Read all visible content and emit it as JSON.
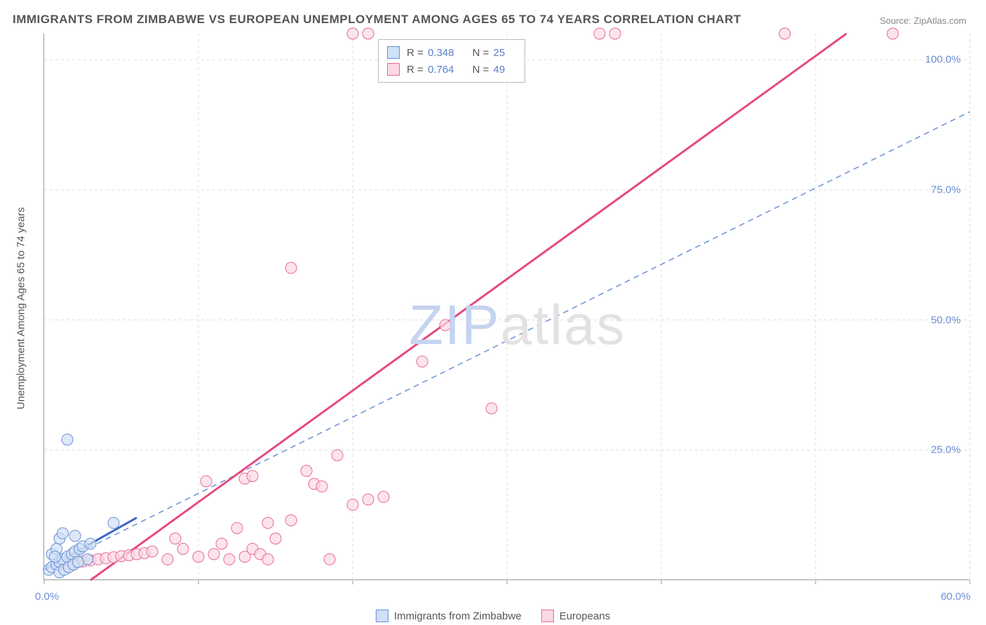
{
  "title": "IMMIGRANTS FROM ZIMBABWE VS EUROPEAN UNEMPLOYMENT AMONG AGES 65 TO 74 YEARS CORRELATION CHART",
  "source": "Source: ZipAtlas.com",
  "ylabel": "Unemployment Among Ages 65 to 74 years",
  "watermark_zip": "ZIP",
  "watermark_atlas": "atlas",
  "chart": {
    "type": "scatter",
    "xlim": [
      0,
      60
    ],
    "ylim": [
      0,
      105
    ],
    "x_ticks": [
      0,
      10,
      20,
      30,
      40,
      50,
      60
    ],
    "x_tick_labels": [
      "0.0%",
      "",
      "",
      "",
      "",
      "",
      "60.0%"
    ],
    "y_ticks": [
      25,
      50,
      75,
      100
    ],
    "y_tick_labels": [
      "25.0%",
      "50.0%",
      "75.0%",
      "100.0%"
    ],
    "grid_color": "#dddddd",
    "axis_color": "#999999",
    "background_color": "#ffffff",
    "tick_label_color": "#6b8fd4",
    "label_color": "#555555",
    "title_fontsize": 17,
    "label_fontsize": 15
  },
  "series_a": {
    "name": "Immigrants from Zimbabwe",
    "fill_color": "#cfe0f7",
    "stroke_color": "#6b8fd4",
    "marker_radius": 8,
    "line_solid_color": "#3a66c4",
    "line_dash_color": "#6b8fd4",
    "R": "0.348",
    "N": "25",
    "trend_solid": {
      "x1": 0,
      "y1": 2,
      "x2": 6,
      "y2": 12
    },
    "trend_dash": {
      "x1": 0,
      "y1": 2,
      "x2": 60,
      "y2": 90
    },
    "points": [
      [
        0.3,
        2.0
      ],
      [
        0.5,
        2.5
      ],
      [
        0.8,
        3.0
      ],
      [
        1.0,
        3.5
      ],
      [
        1.2,
        4.0
      ],
      [
        1.5,
        4.5
      ],
      [
        1.8,
        5.0
      ],
      [
        2.0,
        5.5
      ],
      [
        2.3,
        6.0
      ],
      [
        2.5,
        6.5
      ],
      [
        2.8,
        4.0
      ],
      [
        3.0,
        7.0
      ],
      [
        1.0,
        1.5
      ],
      [
        1.3,
        2.0
      ],
      [
        1.6,
        2.5
      ],
      [
        1.9,
        3.0
      ],
      [
        2.2,
        3.5
      ],
      [
        0.5,
        5.0
      ],
      [
        0.8,
        6.0
      ],
      [
        1.0,
        8.0
      ],
      [
        1.2,
        9.0
      ],
      [
        4.5,
        11.0
      ],
      [
        1.5,
        27.0
      ],
      [
        2.0,
        8.5
      ],
      [
        0.7,
        4.5
      ]
    ]
  },
  "series_b": {
    "name": "Europeans",
    "fill_color": "#fbd8e4",
    "stroke_color": "#e86a94",
    "marker_radius": 8,
    "line_color": "#e64980",
    "R": "0.764",
    "N": "49",
    "trend": {
      "x1": 3,
      "y1": 0,
      "x2": 52,
      "y2": 105
    },
    "points": [
      [
        1.0,
        3.0
      ],
      [
        1.5,
        3.2
      ],
      [
        2.0,
        3.4
      ],
      [
        2.5,
        3.6
      ],
      [
        3.0,
        3.8
      ],
      [
        3.5,
        4.0
      ],
      [
        4.0,
        4.2
      ],
      [
        4.5,
        4.4
      ],
      [
        5.0,
        4.6
      ],
      [
        5.5,
        4.8
      ],
      [
        6.0,
        5.0
      ],
      [
        6.5,
        5.2
      ],
      [
        7.0,
        5.5
      ],
      [
        8.0,
        4.0
      ],
      [
        9.0,
        6.0
      ],
      [
        10.0,
        4.5
      ],
      [
        11.0,
        5.0
      ],
      [
        11.5,
        7.0
      ],
      [
        12.0,
        4.0
      ],
      [
        12.5,
        10.0
      ],
      [
        13.0,
        4.5
      ],
      [
        13.5,
        6.0
      ],
      [
        14.0,
        5.0
      ],
      [
        14.5,
        4.0
      ],
      [
        10.5,
        19.0
      ],
      [
        13.0,
        19.5
      ],
      [
        13.5,
        20.0
      ],
      [
        14.5,
        11.0
      ],
      [
        16.0,
        11.5
      ],
      [
        15.0,
        8.0
      ],
      [
        17.0,
        21.0
      ],
      [
        17.5,
        18.5
      ],
      [
        18.5,
        4.0
      ],
      [
        18.0,
        18.0
      ],
      [
        19.0,
        24.0
      ],
      [
        20.0,
        14.5
      ],
      [
        21.0,
        15.5
      ],
      [
        22.0,
        16.0
      ],
      [
        24.5,
        42.0
      ],
      [
        26.0,
        49.0
      ],
      [
        29.0,
        33.0
      ],
      [
        16.0,
        60.0
      ],
      [
        20.0,
        105.0
      ],
      [
        21.0,
        105.0
      ],
      [
        36.0,
        105.0
      ],
      [
        37.0,
        105.0
      ],
      [
        48.0,
        105.0
      ],
      [
        55.0,
        105.0
      ],
      [
        8.5,
        8.0
      ]
    ]
  },
  "legend_top": {
    "R_label": "R =",
    "N_label": "N ="
  },
  "legend_bottom": {
    "series_a_label": "Immigrants from Zimbabwe",
    "series_b_label": "Europeans"
  }
}
